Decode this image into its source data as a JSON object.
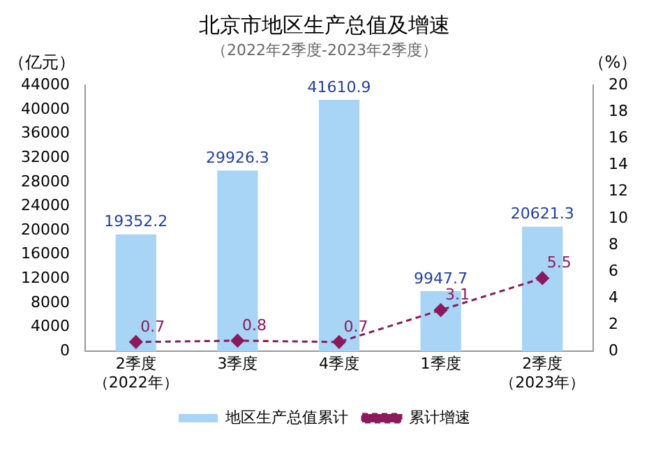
{
  "chart_data": {
    "type": "bar",
    "title": "北京市地区生产总值及增速",
    "subtitle": "（2022年2季度-2023年2季度）",
    "ylabel": "（亿元）",
    "y2label": "（%）",
    "categories": [
      "2季度（2022年）",
      "3季度",
      "4季度",
      "1季度",
      "2季度（2023年）"
    ],
    "series": [
      {
        "name": "地区生产总值累计",
        "color": "#a8d4f5",
        "values": [
          19352.2,
          29926.3,
          41610.9,
          9947.7,
          20621.3
        ]
      },
      {
        "name": "累计增速",
        "type": "line",
        "axis": "y2",
        "color": "#8b1a5c",
        "marker": "diamond",
        "line_style": "dashed",
        "values": [
          0.7,
          0.8,
          0.7,
          3.1,
          5.5
        ]
      }
    ],
    "ylim": [
      0,
      44000
    ],
    "yticks": [
      0,
      4000,
      8000,
      12000,
      16000,
      20000,
      24000,
      28000,
      32000,
      36000,
      40000,
      44000
    ],
    "y2lim": [
      0,
      20
    ],
    "y2ticks": [
      0,
      2,
      4,
      6,
      8,
      10,
      12,
      14,
      16,
      18,
      20
    ],
    "data_labels": true,
    "legend": "bottom",
    "grid": false
  }
}
